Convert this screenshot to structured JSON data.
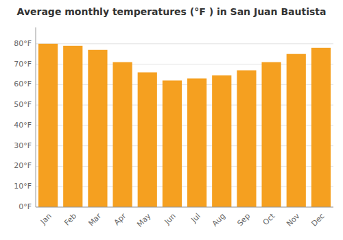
{
  "chart_data": {
    "type": "bar",
    "title": "Average monthly temperatures (°F ) in San Juan Bautista",
    "categories": [
      "Jan",
      "Feb",
      "Mar",
      "Apr",
      "May",
      "Jun",
      "Jul",
      "Aug",
      "Sep",
      "Oct",
      "Nov",
      "Dec"
    ],
    "values": [
      80,
      79,
      77,
      71,
      66,
      62,
      63,
      64.5,
      67,
      71,
      75,
      78
    ],
    "color": "#F5A020",
    "ylim": [
      0,
      88
    ],
    "yticks": [
      {
        "value": 0,
        "label": "0°F"
      },
      {
        "value": 10,
        "label": "10°F"
      },
      {
        "value": 20,
        "label": "20°F"
      },
      {
        "value": 30,
        "label": "30°F"
      },
      {
        "value": 40,
        "label": "40°F"
      },
      {
        "value": 50,
        "label": "50°F"
      },
      {
        "value": 60,
        "label": "60°F"
      },
      {
        "value": 70,
        "label": "70°F"
      },
      {
        "value": 80,
        "label": "80°F"
      }
    ],
    "grid": true
  }
}
